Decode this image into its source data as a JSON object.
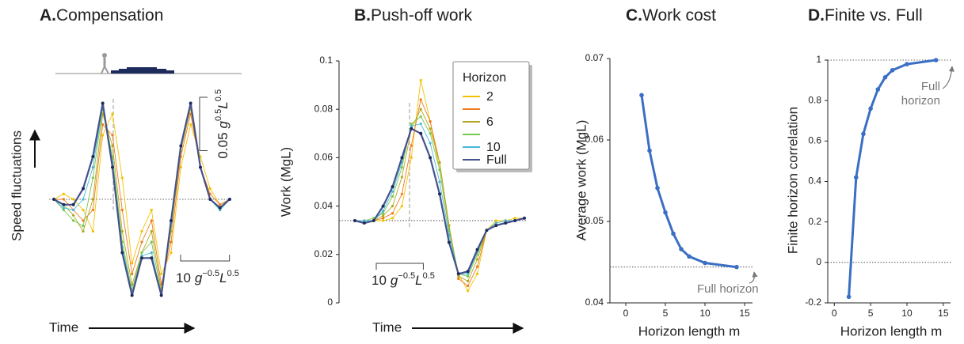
{
  "chart_data": [
    {
      "type": "line",
      "label": "A.",
      "title": "Compensation",
      "ylabel": "Speed fluctuations",
      "xlabel": "Time",
      "x": [
        0,
        2,
        4,
        6,
        8,
        10,
        12,
        14,
        16,
        18,
        20,
        22,
        24,
        26,
        28,
        30,
        32,
        34,
        36
      ],
      "xlim": [
        0,
        36
      ],
      "ylim": [
        -0.1,
        0.1
      ],
      "hlines": [
        0
      ],
      "scale_bars": [
        {
          "axis": "y",
          "value": 0.05,
          "unit": [
            "g",
            "0.5",
            "L",
            "0.5"
          ]
        },
        {
          "axis": "x",
          "value": 10,
          "unit": [
            "g",
            "−0.5",
            "L",
            "0.5"
          ]
        }
      ],
      "series": [
        {
          "color": "#f2c200",
          "values": [
            0,
            0.005,
            0,
            -0.01,
            -0.03,
            0.06,
            0.08,
            0.02,
            -0.06,
            -0.03,
            -0.01,
            -0.07,
            -0.05,
            0.03,
            0.07,
            0.04,
            0.01,
            -0.005,
            0
          ]
        },
        {
          "color": "#ee7a20",
          "values": [
            0,
            0,
            -0.01,
            -0.02,
            -0.01,
            0.07,
            0.06,
            -0.01,
            -0.07,
            -0.04,
            -0.02,
            -0.08,
            -0.04,
            0.04,
            0.08,
            0.03,
            0.005,
            -0.005,
            0
          ]
        },
        {
          "color": "#b0a820",
          "values": [
            0,
            -0.005,
            -0.015,
            -0.03,
            0,
            0.08,
            0.05,
            -0.03,
            -0.08,
            -0.05,
            -0.03,
            -0.085,
            -0.03,
            0.045,
            0.085,
            0.03,
            0,
            -0.01,
            0
          ]
        },
        {
          "color": "#78c850",
          "values": [
            0,
            -0.01,
            -0.02,
            -0.025,
            0.02,
            0.085,
            0.04,
            -0.04,
            -0.085,
            -0.05,
            -0.04,
            -0.088,
            -0.025,
            0.05,
            0.088,
            0.03,
            0,
            -0.01,
            0
          ]
        },
        {
          "color": "#48b8d8",
          "values": [
            0,
            -0.008,
            -0.01,
            0,
            0.03,
            0.088,
            0.035,
            -0.045,
            -0.088,
            -0.053,
            -0.05,
            -0.09,
            -0.022,
            0.05,
            0.09,
            0.03,
            0,
            -0.01,
            0
          ]
        },
        {
          "color": "#45528c",
          "values": [
            0,
            -0.005,
            -0.005,
            0.01,
            0.04,
            0.09,
            0.03,
            -0.05,
            -0.09,
            -0.055,
            -0.055,
            -0.09,
            -0.02,
            0.05,
            0.09,
            0.03,
            0,
            -0.008,
            0
          ]
        }
      ]
    },
    {
      "type": "line",
      "label": "B.",
      "title": "Push-off work",
      "ylabel": "Work (MgL)",
      "xlabel": "Time",
      "x": [
        0,
        2,
        4,
        6,
        8,
        10,
        12,
        14,
        16,
        18,
        20,
        22,
        24,
        26,
        28,
        30,
        32,
        34,
        36
      ],
      "xlim": [
        0,
        36
      ],
      "ylim": [
        0,
        0.1
      ],
      "yticks": [
        0,
        0.02,
        0.04,
        0.06,
        0.08,
        0.1
      ],
      "hlines": [
        0.034
      ],
      "scale_bars": [
        {
          "axis": "x",
          "value": 10,
          "unit": [
            "g",
            "−0.5",
            "L",
            "0.5"
          ]
        }
      ],
      "legend": "upper right",
      "legend_title": "Horizon",
      "series": [
        {
          "name": "2",
          "color": "#f2c200",
          "values": [
            0.034,
            0.034,
            0.034,
            0.034,
            0.035,
            0.04,
            0.06,
            0.092,
            0.075,
            0.055,
            0.03,
            0.012,
            0.005,
            0.012,
            0.03,
            0.034,
            0.034,
            0.035,
            0.035
          ]
        },
        {
          "color": "#ee7a20",
          "values": [
            0.034,
            0.034,
            0.034,
            0.035,
            0.037,
            0.045,
            0.065,
            0.084,
            0.075,
            0.058,
            0.032,
            0.01,
            0.007,
            0.015,
            0.03,
            0.033,
            0.034,
            0.034,
            0.035
          ]
        },
        {
          "name": "6",
          "color": "#b0a820",
          "values": [
            0.034,
            0.034,
            0.034,
            0.036,
            0.04,
            0.052,
            0.072,
            0.08,
            0.072,
            0.058,
            0.032,
            0.011,
            0.009,
            0.018,
            0.03,
            0.033,
            0.034,
            0.034,
            0.035
          ]
        },
        {
          "color": "#78c850",
          "values": [
            0.034,
            0.034,
            0.035,
            0.037,
            0.044,
            0.056,
            0.074,
            0.077,
            0.07,
            0.055,
            0.03,
            0.012,
            0.011,
            0.02,
            0.03,
            0.033,
            0.034,
            0.034,
            0.035
          ]
        },
        {
          "name": "10",
          "color": "#48b8d8",
          "values": [
            0.034,
            0.034,
            0.034,
            0.038,
            0.046,
            0.058,
            0.073,
            0.074,
            0.066,
            0.05,
            0.028,
            0.012,
            0.012,
            0.021,
            0.03,
            0.033,
            0.034,
            0.034,
            0.035
          ]
        },
        {
          "name": "Full",
          "color": "#45528c",
          "values": [
            0.034,
            0.033,
            0.034,
            0.04,
            0.048,
            0.06,
            0.072,
            0.07,
            0.06,
            0.045,
            0.025,
            0.012,
            0.013,
            0.022,
            0.03,
            0.032,
            0.033,
            0.034,
            0.035
          ]
        }
      ]
    },
    {
      "type": "line",
      "label": "C.",
      "title": "Work cost",
      "ylabel": "Average work (MgL)",
      "xlabel": "Horizon length m",
      "x": [
        2,
        3,
        4,
        5,
        6,
        7,
        8,
        10,
        14
      ],
      "xlim": [
        -2,
        16
      ],
      "xticks": [
        0,
        5,
        10,
        15
      ],
      "ylim": [
        0.04,
        0.07
      ],
      "yticks": [
        0.04,
        0.05,
        0.06,
        0.07
      ],
      "hlines": [
        0.0444
      ],
      "annotation": [
        "Full horizon"
      ],
      "series": [
        {
          "color": "#3a6fc4",
          "values": [
            0.0655,
            0.0587,
            0.0541,
            0.0511,
            0.0485,
            0.0466,
            0.0457,
            0.0449,
            0.0444
          ]
        }
      ]
    },
    {
      "type": "line",
      "label": "D.",
      "title": "Finite vs. Full",
      "ylabel": "Finite horizon correlation",
      "xlabel": "Horizon length m",
      "x": [
        2,
        3,
        4,
        5,
        6,
        7,
        8,
        10,
        14
      ],
      "xlim": [
        -0.9,
        16
      ],
      "xticks": [
        0,
        5,
        10,
        15
      ],
      "ylim": [
        -0.2,
        1
      ],
      "yticks": [
        -0.2,
        0,
        0.2,
        0.4,
        0.6,
        0.8,
        1
      ],
      "hlines": [
        0,
        1
      ],
      "annotation": [
        "Full",
        "horizon"
      ],
      "series": [
        {
          "color": "#3a6fc4",
          "values": [
            -0.17,
            0.42,
            0.635,
            0.76,
            0.855,
            0.915,
            0.95,
            0.98,
            1.0
          ]
        }
      ]
    }
  ]
}
